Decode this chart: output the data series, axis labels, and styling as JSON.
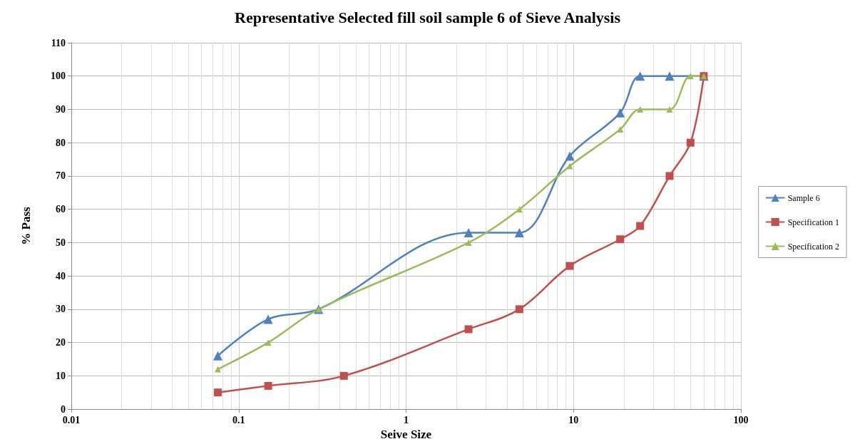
{
  "chart_data": {
    "type": "line",
    "title": "Representative Selected fill soil sample 6 of Sieve Analysis",
    "xlabel": "Seive Size",
    "ylabel": "% Pass",
    "log": "x",
    "xlim": [
      0.01,
      100
    ],
    "xticks": [
      0.01,
      0.1,
      1,
      10,
      100
    ],
    "ylim": [
      0,
      110
    ],
    "yticks": [
      0,
      10,
      20,
      30,
      40,
      50,
      60,
      70,
      80,
      90,
      100,
      110
    ],
    "grid": true,
    "legend": "right",
    "line_style": "solid",
    "series": [
      {
        "name": "Sample 6",
        "color": "#4f81bd",
        "marker": "triangle",
        "x": [
          0.075,
          0.15,
          0.3,
          2.36,
          4.75,
          9.5,
          19,
          25,
          37.5,
          60
        ],
        "values": [
          16,
          27,
          30,
          53,
          53,
          76,
          89,
          100,
          100,
          100
        ]
      },
      {
        "name": "Specification 1",
        "color": "#c0504d",
        "marker": "square",
        "x": [
          0.075,
          0.15,
          0.425,
          2.36,
          4.75,
          9.5,
          19,
          25,
          37.5,
          50,
          60
        ],
        "values": [
          5,
          7,
          10,
          24,
          30,
          43,
          51,
          55,
          70,
          80,
          100
        ]
      },
      {
        "name": "Specification 2",
        "color": "#9bbb59",
        "marker": "triangle",
        "x": [
          0.075,
          0.15,
          0.3,
          2.36,
          4.75,
          9.5,
          19,
          25,
          37.5,
          50,
          60
        ],
        "values": [
          12,
          20,
          30,
          50,
          60,
          73,
          84,
          90,
          90,
          100,
          100
        ]
      }
    ]
  }
}
